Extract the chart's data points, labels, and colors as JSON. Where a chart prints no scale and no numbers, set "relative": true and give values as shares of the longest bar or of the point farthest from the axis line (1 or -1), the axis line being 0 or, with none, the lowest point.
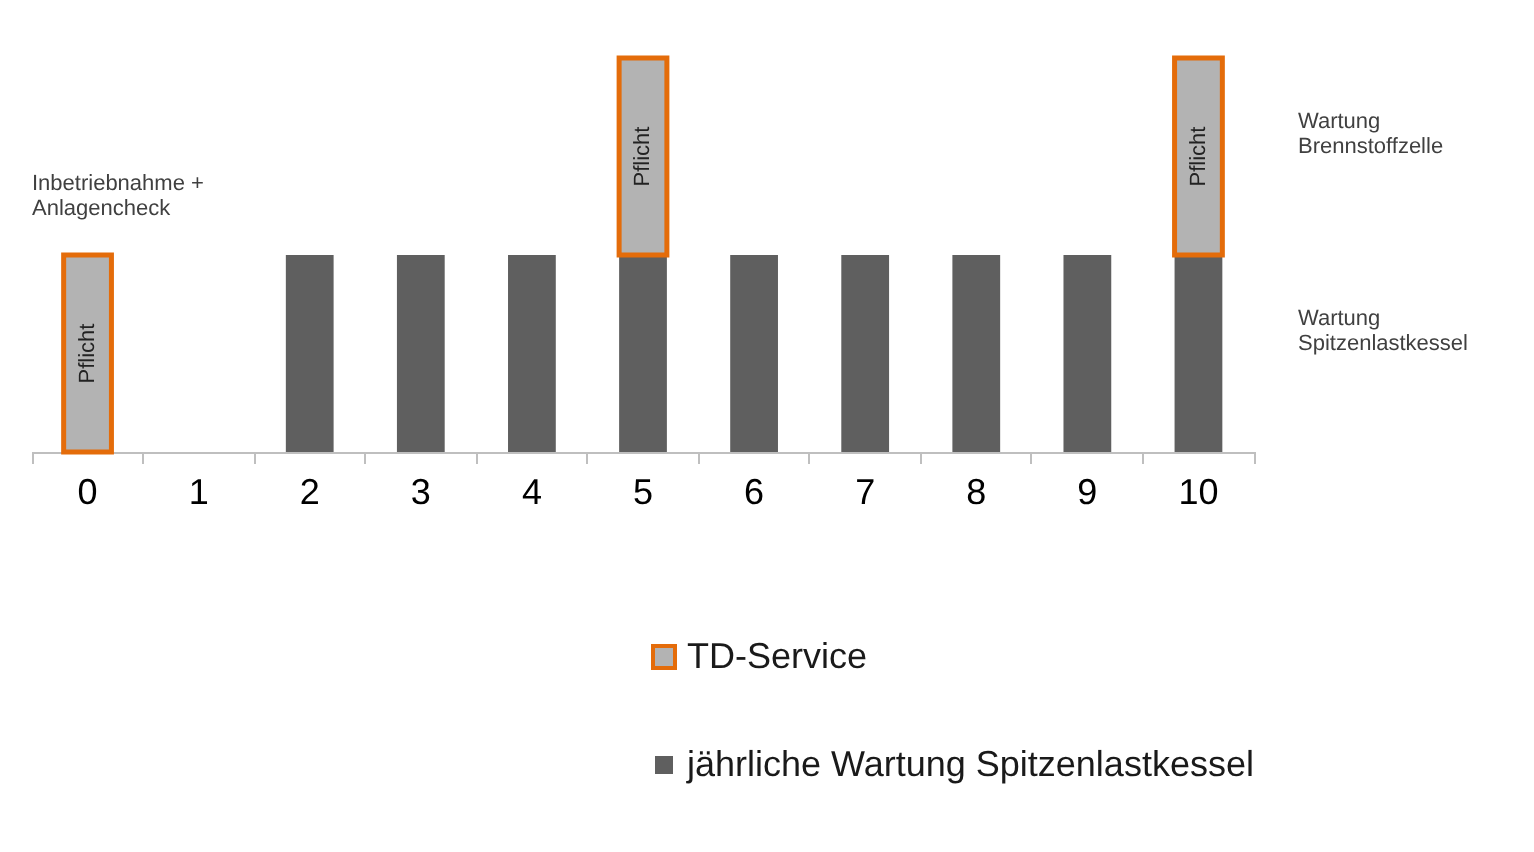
{
  "chart_data": {
    "type": "bar",
    "categories": [
      "0",
      "1",
      "2",
      "3",
      "4",
      "5",
      "6",
      "7",
      "8",
      "9",
      "10"
    ],
    "relative": true,
    "stacked": true,
    "legend": "bottom",
    "series": [
      {
        "name": "jährliche Wartung Spitzenlastkessel",
        "color": "#5f5f5f",
        "values": [
          null,
          null,
          0.5,
          0.5,
          0.5,
          0.5,
          0.5,
          0.5,
          0.5,
          0.5,
          0.5
        ]
      },
      {
        "name": "TD-Service",
        "color": "#b3b3b3",
        "values": [
          0.5,
          null,
          null,
          null,
          null,
          0.5,
          null,
          null,
          null,
          null,
          0.5
        ]
      }
    ],
    "annotations": [
      {
        "text": "Inbetriebnahme + Anlagencheck",
        "x": "0",
        "y": 0.5
      },
      "Pflicht",
      "Pflicht",
      "Pflicht",
      "Wartung Brennstoffzelle",
      "Wartung Spitzenlastkessel"
    ]
  }
}
